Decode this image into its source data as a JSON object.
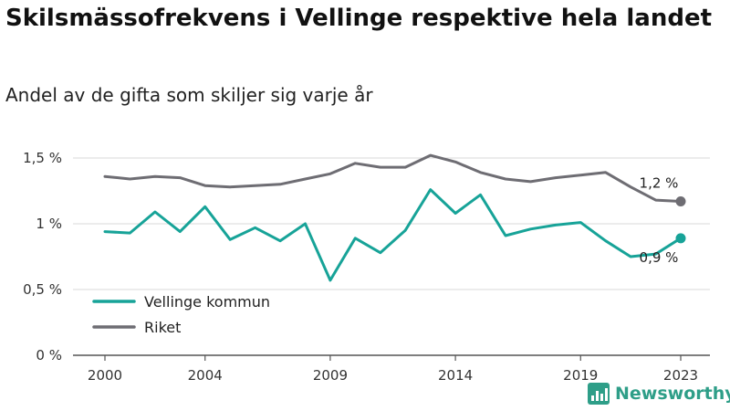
{
  "title": "Skilsmässofrekvens i Vellinge respektive hela landet",
  "subtitle": "Andel av de gifta som skiljer sig varje år",
  "brand": {
    "name": "Newsworthy",
    "icon": "bar-chart-icon",
    "color": "#2e9e88"
  },
  "chart_data": {
    "type": "line",
    "x": [
      2000,
      2001,
      2002,
      2003,
      2004,
      2005,
      2006,
      2007,
      2008,
      2009,
      2010,
      2011,
      2012,
      2013,
      2014,
      2015,
      2016,
      2017,
      2018,
      2019,
      2020,
      2021,
      2022,
      2023
    ],
    "x_ticks": [
      2000,
      2004,
      2009,
      2014,
      2019,
      2023
    ],
    "x_tick_labels": [
      "2000",
      "2004",
      "2009",
      "2014",
      "2019",
      "2023"
    ],
    "y_ticks": [
      0,
      0.5,
      1,
      1.5
    ],
    "y_tick_labels": [
      "0 %",
      "0,5 %",
      "1 %",
      "1,5 %"
    ],
    "ylim": [
      0,
      1.5
    ],
    "xlabel": "",
    "ylabel": "",
    "grid": "horizontal",
    "legend_position": "bottom-left",
    "series": [
      {
        "name": "Vellinge kommun",
        "color": "#17a398",
        "values": [
          0.94,
          0.93,
          1.09,
          0.94,
          1.13,
          0.88,
          0.97,
          0.87,
          1.0,
          0.57,
          0.89,
          0.78,
          0.95,
          1.26,
          1.08,
          1.22,
          0.91,
          0.96,
          0.99,
          1.01,
          0.87,
          0.75,
          0.77,
          0.89
        ],
        "end_label": "0,9 %"
      },
      {
        "name": "Riket",
        "color": "#6e6d73",
        "values": [
          1.36,
          1.34,
          1.36,
          1.35,
          1.29,
          1.28,
          1.29,
          1.3,
          1.34,
          1.38,
          1.46,
          1.43,
          1.43,
          1.52,
          1.47,
          1.39,
          1.34,
          1.32,
          1.35,
          1.37,
          1.39,
          1.28,
          1.18,
          1.17
        ],
        "end_label": "1,2 %"
      }
    ]
  }
}
